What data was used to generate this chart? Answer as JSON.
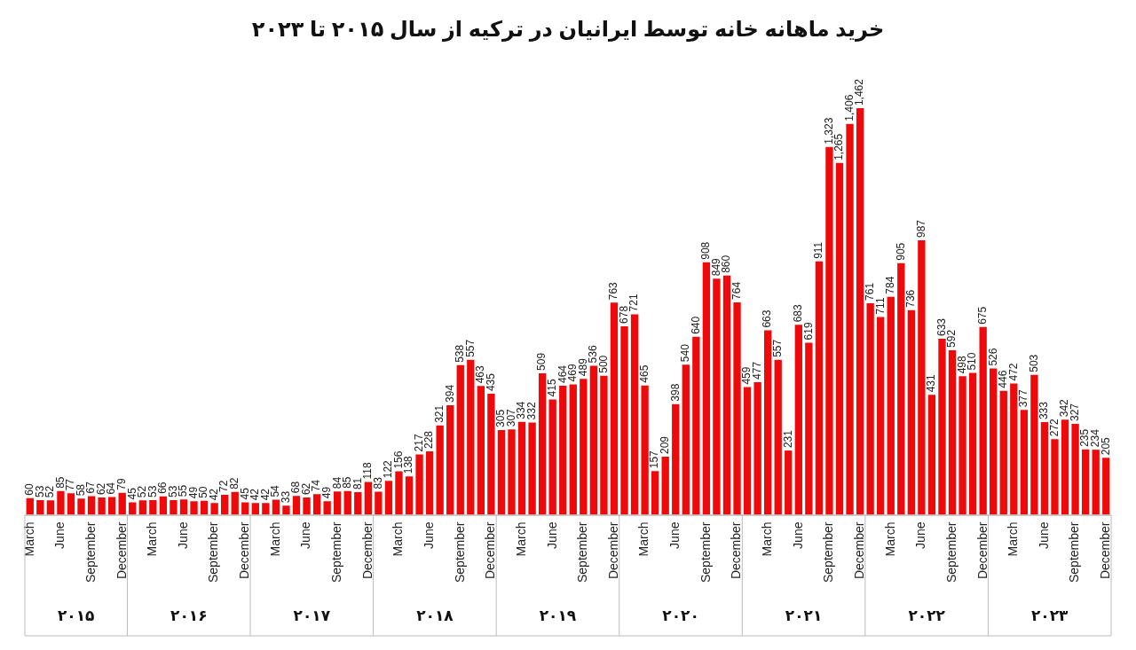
{
  "chart_data": {
    "type": "bar",
    "title": "خرید ماهانه خانه توسط ایرانیان در ترکیه از سال ۲۰۱۵ تا ۲۰۲۳",
    "categories": [
      "March",
      null,
      null,
      "June",
      null,
      null,
      "September",
      null,
      null,
      "December",
      null,
      null,
      "March",
      null,
      null,
      "June",
      null,
      null,
      "September",
      null,
      null,
      "December",
      null,
      null,
      "March",
      null,
      null,
      "June",
      null,
      null,
      "September",
      null,
      null,
      "December",
      null,
      null,
      "March",
      null,
      null,
      "June",
      null,
      null,
      "September",
      null,
      null,
      "December",
      null,
      null,
      "March",
      null,
      null,
      "June",
      null,
      null,
      "September",
      null,
      null,
      "December",
      null,
      null,
      "March",
      null,
      null,
      "June",
      null,
      null,
      "September",
      null,
      null,
      "December",
      null,
      null,
      "March",
      null,
      null,
      "June",
      null,
      null,
      "September",
      null,
      null,
      "December",
      null,
      null,
      "March",
      null,
      null,
      "June",
      null,
      null,
      "September",
      null,
      null,
      "December",
      null,
      null,
      "March",
      null,
      null,
      "June",
      null,
      null,
      "September",
      null,
      null,
      "December"
    ],
    "values": [
      60,
      53,
      52,
      85,
      77,
      58,
      67,
      62,
      64,
      79,
      45,
      52,
      53,
      66,
      53,
      55,
      49,
      50,
      42,
      72,
      82,
      45,
      42,
      42,
      54,
      33,
      68,
      62,
      74,
      49,
      84,
      85,
      81,
      118,
      83,
      122,
      156,
      138,
      217,
      228,
      321,
      394,
      538,
      557,
      463,
      435,
      305,
      307,
      334,
      332,
      509,
      415,
      464,
      469,
      489,
      536,
      500,
      763,
      678,
      721,
      465,
      157,
      209,
      398,
      540,
      640,
      908,
      849,
      860,
      764,
      459,
      477,
      663,
      557,
      231,
      683,
      619,
      911,
      1323,
      1265,
      1406,
      1462,
      761,
      711,
      784,
      905,
      736,
      987,
      431,
      633,
      592,
      498,
      510,
      675,
      526,
      446,
      472,
      377,
      503,
      333,
      272,
      342,
      327,
      235,
      234,
      205
    ],
    "value_labels": [
      "60",
      "53",
      "52",
      "85",
      "77",
      "58",
      "67",
      "62",
      "64",
      "79",
      "45",
      "52",
      "53",
      "66",
      "53",
      "55",
      "49",
      "50",
      "42",
      "72",
      "82",
      "45",
      "42",
      "42",
      "54",
      "33",
      "68",
      "62",
      "74",
      "49",
      "84",
      "85",
      "81",
      "118",
      "83",
      "122",
      "156",
      "138",
      "217",
      "228",
      "321",
      "394",
      "538",
      "557",
      "463",
      "435",
      "305",
      "307",
      "334",
      "332",
      "509",
      "415",
      "464",
      "469",
      "489",
      "536",
      "500",
      "763",
      "678",
      "721",
      "465",
      "157",
      "209",
      "398",
      "540",
      "640",
      "908",
      "849",
      "860",
      "764",
      "459",
      "477",
      "663",
      "557",
      "231",
      "683",
      "619",
      "911",
      "1,323",
      "1,265",
      "1,406",
      "1,462",
      "761",
      "711",
      "784",
      "905",
      "736",
      "987",
      "431",
      "633",
      "592",
      "498",
      "510",
      "675",
      "526",
      "446",
      "472",
      "377",
      "503",
      "333",
      "272",
      "342",
      "327",
      "235",
      "234",
      "205"
    ],
    "color": "#ee0a0a",
    "grid": false,
    "legend": false,
    "tick_labels": "x",
    "annotations": [
      "۲۰۱۵",
      "۲۰۱۶",
      "۲۰۱۷",
      "۲۰۱۸",
      "۲۰۱۹",
      "۲۰۲۰",
      "۲۰۲۱",
      "۲۰۲۲",
      "۲۰۲۳"
    ]
  }
}
